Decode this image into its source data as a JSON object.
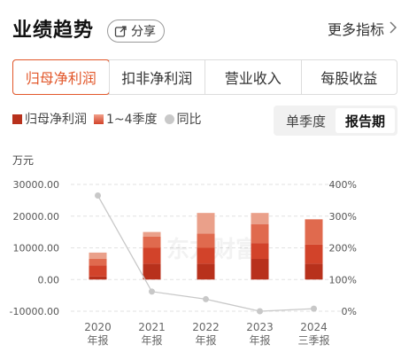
{
  "header": {
    "title": "业绩趋势",
    "share_label": "分享",
    "more_label": "更多指标"
  },
  "tabs": [
    {
      "label": "归母净利润",
      "active": true
    },
    {
      "label": "扣非净利润",
      "active": false
    },
    {
      "label": "营业收入",
      "active": false
    },
    {
      "label": "每股收益",
      "active": false
    }
  ],
  "legend": {
    "item1": "归母净利润",
    "item2": "1~4季度",
    "item3": "同比"
  },
  "period_toggle": {
    "option1": "单季度",
    "option2": "报告期",
    "selected": "报告期"
  },
  "watermark": "东方财富",
  "colors": {
    "accent": "#e2572a",
    "q1": "#b8311c",
    "q2": "#d2432a",
    "q3": "#e06a4e",
    "q4": "#eaa08a",
    "line": "#c8c8c8"
  },
  "chart_data": {
    "type": "bar",
    "unit_label": "万元",
    "categories": [
      "2020\n年报",
      "2021\n年报",
      "2022\n年报",
      "2023\n年报",
      "2024\n三季报"
    ],
    "left_axis": {
      "ticks": [
        "30000.00",
        "20000.00",
        "10000.00",
        "0.00",
        "-10000.00"
      ],
      "ylim": [
        -10000,
        30000
      ]
    },
    "right_axis": {
      "ticks": [
        "400%",
        "300%",
        "200%",
        "100%",
        "0%"
      ],
      "ylim": [
        0,
        400
      ]
    },
    "series": [
      {
        "name": "1季度",
        "values": [
          1000,
          5000,
          5000,
          6500,
          5000
        ]
      },
      {
        "name": "2季度",
        "values": [
          3500,
          5000,
          5000,
          5000,
          6000
        ]
      },
      {
        "name": "3季度",
        "values": [
          2000,
          3500,
          4500,
          6000,
          8000
        ]
      },
      {
        "name": "4季度",
        "values": [
          2000,
          1500,
          6500,
          3500,
          0
        ]
      }
    ],
    "line_series": {
      "name": "同比",
      "values": [
        365,
        62,
        38,
        0,
        8
      ]
    },
    "grid": true
  }
}
